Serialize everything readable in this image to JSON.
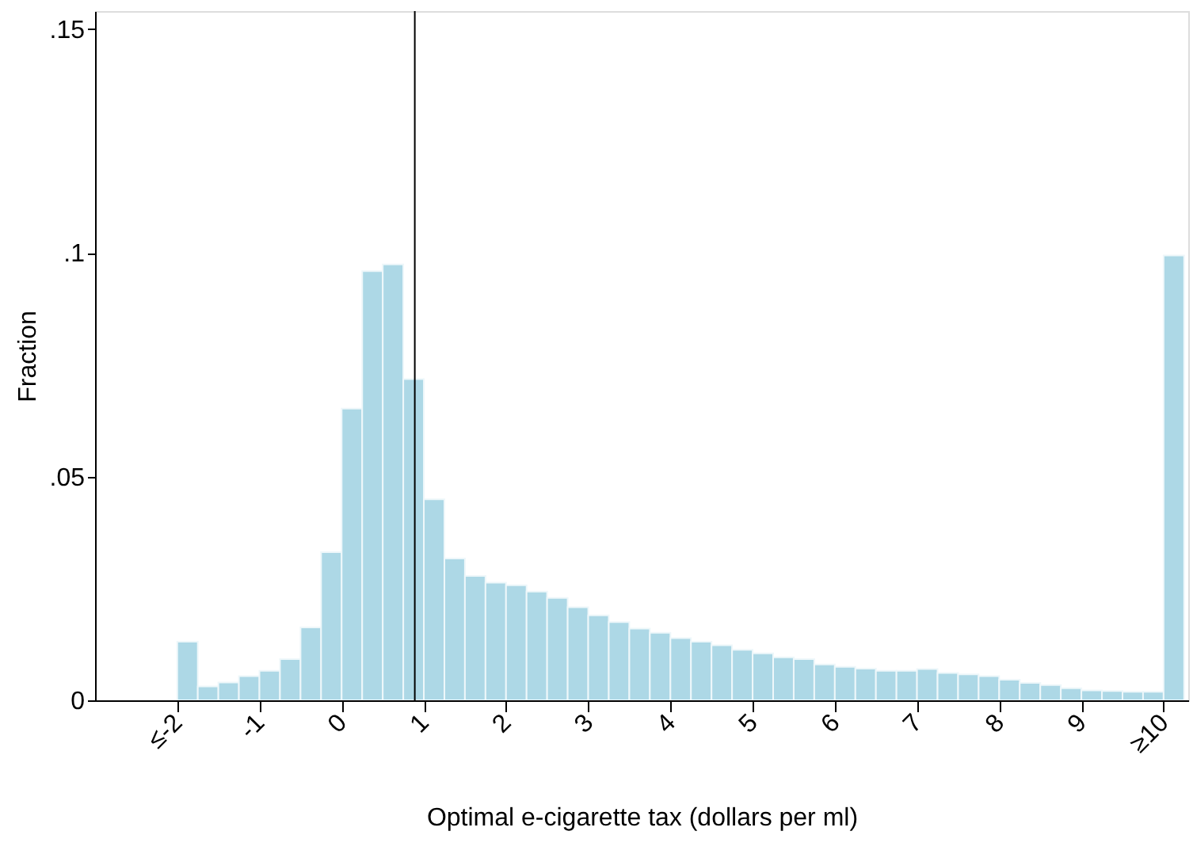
{
  "chart_data": {
    "type": "histogram",
    "xlabel": "Optimal e-cigarette tax (dollars per ml)",
    "ylabel": "Fraction",
    "bins": [
      -2,
      -1.75,
      -1.5,
      -1.25,
      -1,
      -0.75,
      -0.5,
      -0.25,
      0,
      0.25,
      0.5,
      0.75,
      1,
      1.25,
      1.5,
      1.75,
      2,
      2.25,
      2.5,
      2.75,
      3,
      3.25,
      3.5,
      3.75,
      4,
      4.25,
      4.5,
      4.75,
      5,
      5.25,
      5.5,
      5.75,
      6,
      6.25,
      6.5,
      6.75,
      7,
      7.25,
      7.5,
      7.75,
      8,
      8.25,
      8.5,
      8.75,
      9,
      9.25,
      9.5,
      9.75,
      10,
      10.25
    ],
    "values": [
      0.0131,
      0.0031,
      0.004,
      0.0054,
      0.0066,
      0.0092,
      0.0163,
      0.0331,
      0.0652,
      0.0959,
      0.0974,
      0.0718,
      0.0449,
      0.0317,
      0.0278,
      0.0263,
      0.0257,
      0.0243,
      0.0229,
      0.0208,
      0.019,
      0.0175,
      0.016,
      0.0151,
      0.0139,
      0.0131,
      0.0123,
      0.0113,
      0.0105,
      0.0096,
      0.0092,
      0.008,
      0.0075,
      0.0071,
      0.0066,
      0.0066,
      0.007,
      0.0061,
      0.0058,
      0.0054,
      0.0046,
      0.0039,
      0.0034,
      0.0027,
      0.0022,
      0.0021,
      0.0019,
      0.0019,
      0.0994
    ],
    "color": "#add8e6",
    "xlim": [
      -3,
      10.3
    ],
    "xticks": [
      {
        "value": -2,
        "label": "≤-2"
      },
      -1,
      0,
      1,
      2,
      3,
      4,
      5,
      6,
      7,
      8,
      9,
      {
        "value": 10,
        "label": "≥10"
      }
    ],
    "ylim": [
      0,
      0.154
    ],
    "yticks": [
      0,
      {
        "value": 0.05,
        "label": ".05"
      },
      {
        "value": 0.1,
        "label": ".1"
      },
      {
        "value": 0.15,
        "label": ".15"
      }
    ],
    "ref_lines": [
      {
        "axis": "x",
        "value": 0.89,
        "color": "#000000"
      }
    ],
    "grid": false
  }
}
